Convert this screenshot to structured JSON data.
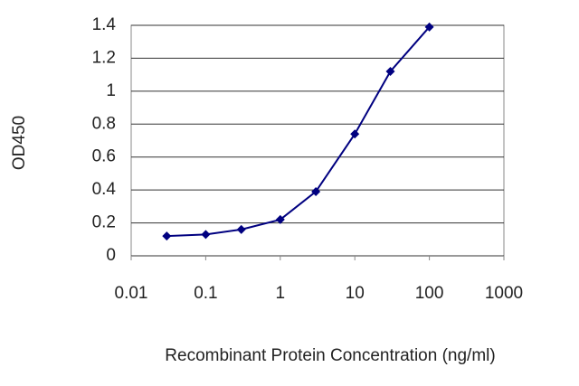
{
  "chart_data": {
    "type": "line",
    "xscale": "log",
    "xlabel": "Recombinant Protein Concentration (ng/ml)",
    "ylabel": "OD450",
    "x": [
      0.03,
      0.1,
      0.3,
      1,
      3,
      10,
      30,
      100
    ],
    "series": [
      {
        "color": "#000080",
        "values": [
          0.12,
          0.13,
          0.16,
          0.22,
          0.39,
          0.74,
          1.12,
          1.39
        ]
      }
    ],
    "xlim": [
      0.01,
      1000
    ],
    "xticks": [
      0.01,
      0.1,
      1,
      10,
      100,
      1000
    ],
    "ylim": [
      0,
      1.4
    ],
    "yticks": [
      0,
      0.2,
      0.4,
      0.6,
      0.8,
      1,
      1.2,
      1.4
    ],
    "grid": true
  }
}
